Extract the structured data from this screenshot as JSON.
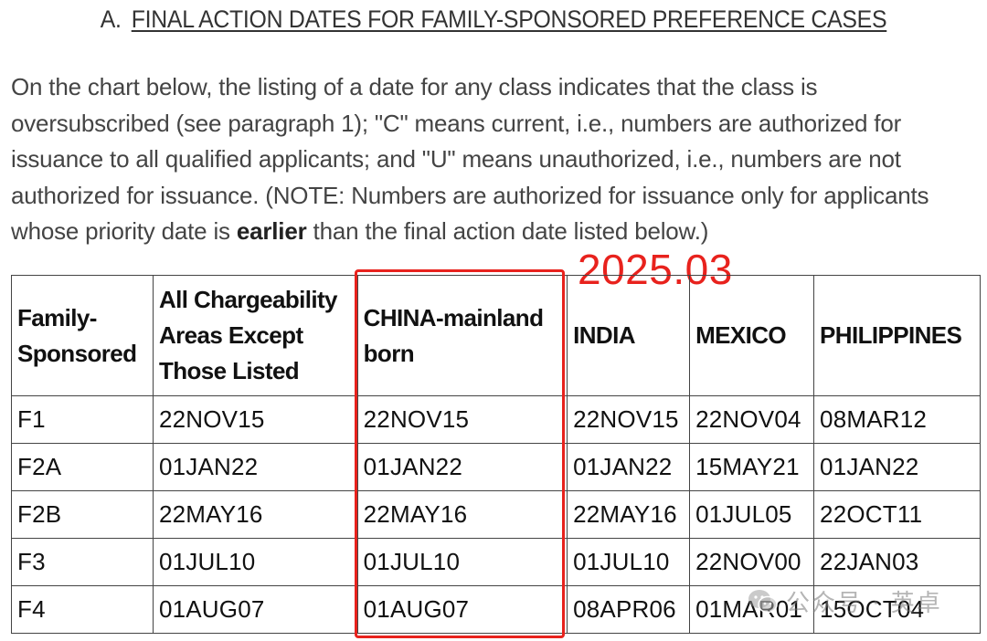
{
  "heading": {
    "prefix": "A.",
    "title": "FINAL ACTION DATES FOR FAMILY-SPONSORED PREFERENCE CASES"
  },
  "intro": {
    "text_before_bold": "On the chart below, the listing of a date for any class indicates that the class is oversubscribed (see paragraph 1); \"C\" means current, i.e., numbers are authorized for issuance to all qualified applicants; and \"U\" means unauthorized, i.e., numbers are not authorized for issuance. (NOTE: Numbers are authorized for issuance only for applicants whose priority date is ",
    "bold": "earlier",
    "text_after_bold": " than the final action date listed below.)"
  },
  "annotation": {
    "date": "2025.03",
    "color": "#e8221d"
  },
  "table": {
    "headers": [
      [
        "Family-",
        "Sponsored"
      ],
      [
        "All Chargeability",
        "Areas Except",
        "Those Listed"
      ],
      [
        "CHINA-mainland",
        "born"
      ],
      [
        "INDIA"
      ],
      [
        "MEXICO"
      ],
      [
        "PHILIPPINES"
      ]
    ],
    "rows": [
      [
        "F1",
        "22NOV15",
        "22NOV15",
        "22NOV15",
        "22NOV04",
        "08MAR12"
      ],
      [
        "F2A",
        "01JAN22",
        "01JAN22",
        "01JAN22",
        "15MAY21",
        "01JAN22"
      ],
      [
        "F2B",
        "22MAY16",
        "22MAY16",
        "22MAY16",
        "01JUL05",
        "22OCT11"
      ],
      [
        "F3",
        "01JUL10",
        "01JUL10",
        "01JUL10",
        "22NOV00",
        "22JAN03"
      ],
      [
        "F4",
        "01AUG07",
        "01AUG07",
        "08APR06",
        "01MAR01",
        "15OCT04"
      ]
    ],
    "highlighted_column": "CHINA-mainland born"
  },
  "watermark": {
    "icon": "wechat-icon",
    "text": "公众号 · 英卓"
  }
}
